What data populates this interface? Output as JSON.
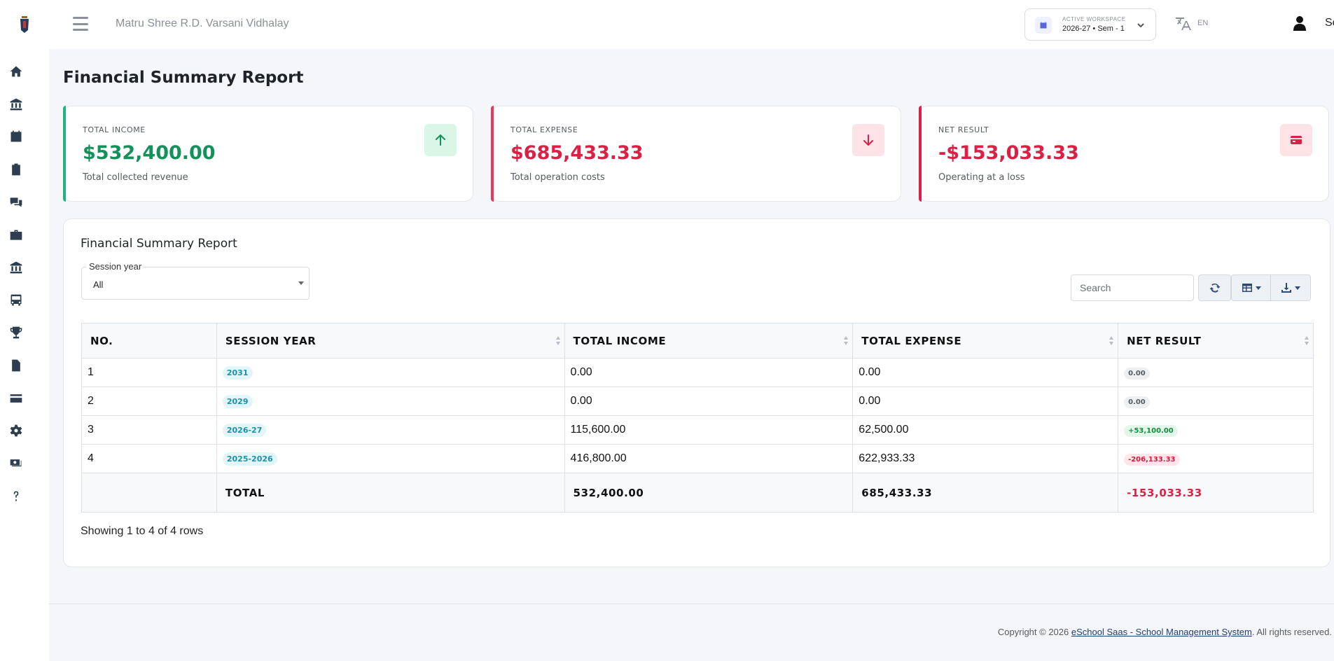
{
  "header": {
    "school_name": "Matru Shree R.D. Varsani Vidhalay",
    "workspace_label": "ACTIVE WORKSPACE",
    "workspace_value": "2026-27 • Sem - 1",
    "language": "EN",
    "user_name": "School"
  },
  "sidebar": {
    "icons": [
      "home-icon",
      "bank-icon",
      "calendar-icon",
      "clipboard-icon",
      "comments-icon",
      "briefcase-icon",
      "institution-icon",
      "bus-icon",
      "trophy-icon",
      "document-icon",
      "credit-card-icon",
      "gear-icon",
      "payroll-icon",
      "help-icon"
    ]
  },
  "page": {
    "title": "Financial Summary Report"
  },
  "stats": {
    "income": {
      "label": "TOTAL INCOME",
      "value": "$532,400.00",
      "sub": "Total collected revenue",
      "color": "#12915a"
    },
    "expense": {
      "label": "TOTAL EXPENSE",
      "value": "$685,433.33",
      "sub": "Total operation costs",
      "color": "#dc1f44"
    },
    "net": {
      "label": "NET RESULT",
      "value": "-$153,033.33",
      "sub": "Operating at a loss",
      "color": "#dc1f44"
    }
  },
  "report": {
    "title": "Financial Summary Report",
    "filter_label": "Session year",
    "filter_value": "All",
    "search_placeholder": "Search",
    "columns": {
      "no": "NO.",
      "session_year": "SESSION YEAR",
      "total_income": "TOTAL INCOME",
      "total_expense": "TOTAL EXPENSE",
      "net_result": "NET RESULT"
    },
    "rows": [
      {
        "no": "1",
        "session_year": "2031",
        "income": "0.00",
        "expense": "0.00",
        "net": "0.00",
        "net_kind": "zero"
      },
      {
        "no": "2",
        "session_year": "2029",
        "income": "0.00",
        "expense": "0.00",
        "net": "0.00",
        "net_kind": "zero"
      },
      {
        "no": "3",
        "session_year": "2026-27",
        "income": "115,600.00",
        "expense": "62,500.00",
        "net": "+53,100.00",
        "net_kind": "pos"
      },
      {
        "no": "4",
        "session_year": "2025-2026",
        "income": "416,800.00",
        "expense": "622,933.33",
        "net": "-206,133.33",
        "net_kind": "neg"
      }
    ],
    "total": {
      "label": "TOTAL",
      "income": "532,400.00",
      "expense": "685,433.33",
      "net": "-153,033.33"
    },
    "showing": "Showing 1 to 4 of 4 rows"
  },
  "footer": {
    "prefix": "Copyright © 2026 ",
    "link": "eSchool Saas - School Management System",
    "suffix": ". All rights reserved."
  }
}
